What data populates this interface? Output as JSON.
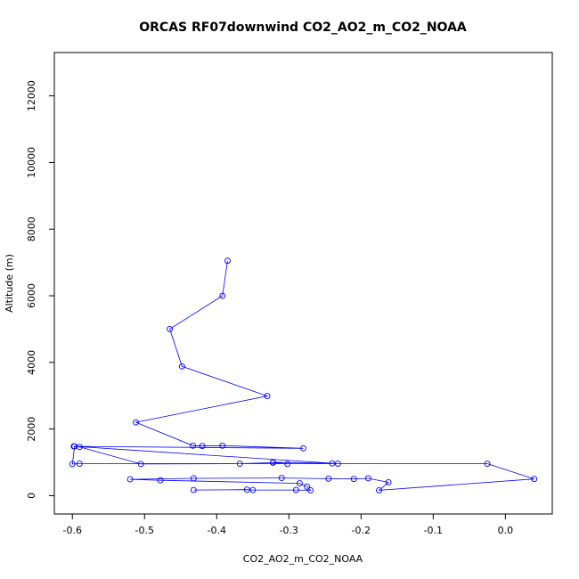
{
  "chart_data": {
    "type": "line",
    "title": "ORCAS RF07downwind CO2_AO2_m_CO2_NOAA",
    "xlabel": "CO2_AO2_m_CO2_NOAA",
    "ylabel": "Altitude (m)",
    "xlim": [
      -0.625,
      0.065
    ],
    "ylim": [
      -550,
      13300
    ],
    "x_ticks": [
      -0.6,
      -0.5,
      -0.4,
      -0.3,
      -0.2,
      -0.1,
      0.0
    ],
    "x_tick_labels": [
      "-0.6",
      "-0.5",
      "-0.4",
      "-0.3",
      "-0.2",
      "-0.1",
      "0.0"
    ],
    "y_ticks": [
      0,
      2000,
      4000,
      6000,
      8000,
      10000,
      12000
    ],
    "y_tick_labels": [
      "0",
      "2000",
      "4000",
      "6000",
      "8000",
      "10000",
      "12000"
    ],
    "grid": false,
    "legend": "none",
    "color": "#0000ff",
    "marker": "open-circle",
    "series": [
      {
        "x": [
          -0.385,
          -0.392,
          -0.465,
          -0.448,
          -0.33,
          -0.512,
          -0.433,
          -0.42,
          -0.392,
          -0.28,
          -0.598,
          -0.59,
          -0.505,
          -0.368,
          -0.322,
          -0.302,
          -0.322,
          -0.24,
          -0.232,
          -0.597,
          -0.6,
          -0.59,
          -0.025,
          0.04,
          -0.175,
          -0.162,
          -0.19,
          -0.21,
          -0.245,
          -0.31,
          -0.432,
          -0.52,
          -0.478,
          -0.285,
          -0.275,
          -0.27,
          -0.29,
          -0.35,
          -0.358,
          -0.432
        ],
        "y": [
          7050,
          6000,
          5000,
          3880,
          2990,
          2200,
          1500,
          1490,
          1500,
          1420,
          1480,
          1460,
          950,
          960,
          990,
          950,
          1000,
          970,
          960,
          1480,
          950,
          960,
          960,
          500,
          160,
          400,
          520,
          500,
          510,
          530,
          520,
          490,
          460,
          370,
          270,
          160,
          170,
          170,
          180,
          170
        ]
      }
    ]
  }
}
